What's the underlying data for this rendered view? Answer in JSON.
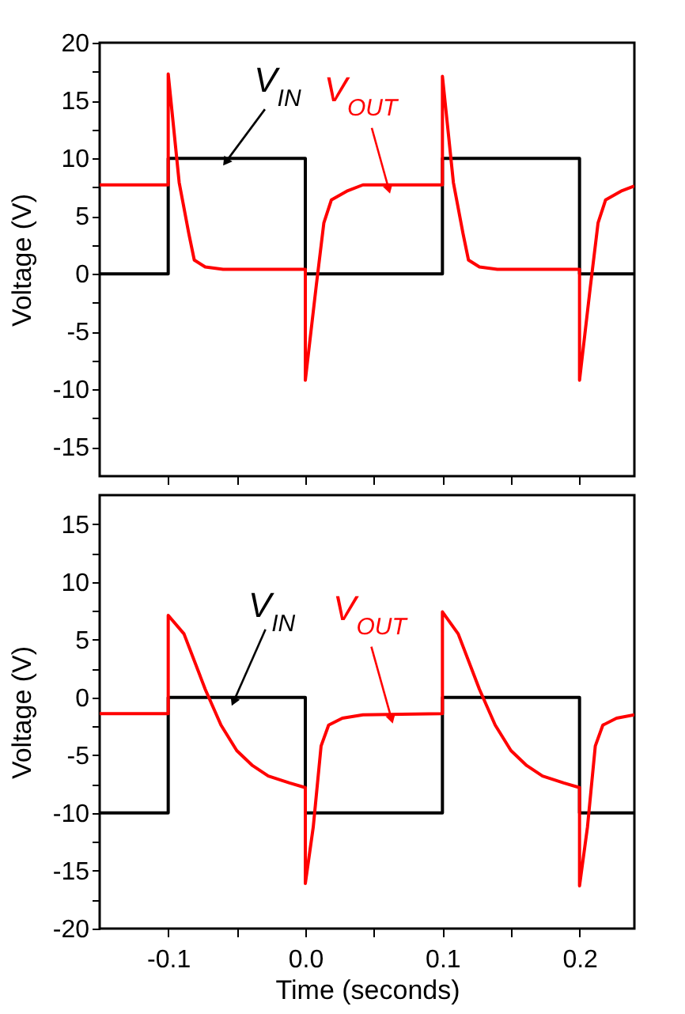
{
  "chart_data": [
    {
      "type": "line",
      "ylabel": "Voltage (V)",
      "xlim": [
        -0.15,
        0.24
      ],
      "ylim": [
        -17.5,
        20
      ],
      "tick_labels": "y",
      "xticks": [
        {
          "value": -0.1,
          "label": null
        },
        {
          "value": -0.05,
          "label": null
        },
        {
          "value": 0,
          "label": null
        },
        {
          "value": 0.05,
          "label": null
        },
        {
          "value": 0.1,
          "label": null
        },
        {
          "value": 0.15,
          "label": null
        },
        {
          "value": 0.2,
          "label": null
        }
      ],
      "yticks": [
        -15,
        {
          "value": -12.5,
          "label": null
        },
        -10,
        {
          "value": -7.5,
          "label": null
        },
        -5,
        {
          "value": -2.5,
          "label": null
        },
        0,
        {
          "value": 2.5,
          "label": null
        },
        5,
        {
          "value": 7.5,
          "label": null
        },
        10,
        {
          "value": 12.5,
          "label": null
        },
        15,
        {
          "value": 17.5,
          "label": null
        },
        20
      ],
      "series": [
        {
          "color": "#000000",
          "x": [
            -0.15,
            -0.1,
            -0.1,
            0,
            0,
            0.1,
            0.1,
            0.2,
            0.2,
            0.24
          ],
          "values": [
            0,
            0,
            10,
            10,
            0,
            0,
            10,
            10,
            0,
            0
          ]
        },
        {
          "color": "#ff0000",
          "x": [
            -0.15,
            -0.1,
            -0.1,
            -0.092,
            -0.085,
            -0.081,
            -0.073,
            -0.06,
            0,
            0,
            0.008,
            0.0135,
            0.019,
            0.031,
            0.042,
            0.1,
            0.1,
            0.108,
            0.115,
            0.119,
            0.127,
            0.14,
            0.2,
            0.2,
            0.208,
            0.2135,
            0.219,
            0.231,
            0.24
          ],
          "values": [
            7.7,
            7.7,
            17.3,
            7.9,
            3.5,
            1.2,
            0.6,
            0.4,
            0.4,
            -9.2,
            -1,
            4.4,
            6.4,
            7.2,
            7.7,
            7.7,
            17.1,
            7.9,
            3.5,
            1.2,
            0.6,
            0.4,
            0.4,
            -9.2,
            -1,
            4.4,
            6.4,
            7.2,
            7.6
          ]
        }
      ],
      "annotations": [
        {
          "text": "V$_{IN}$",
          "x": -0.056,
          "y": 10
        },
        {
          "text": "V$_{OUT}$",
          "x": 0.06,
          "y": 7.7
        }
      ]
    },
    {
      "type": "line",
      "xlabel": "Time (seconds)",
      "ylabel": "Voltage (V)",
      "xlim": [
        -0.15,
        0.24
      ],
      "ylim": [
        -20,
        17.5
      ],
      "xticks": [
        -0.1,
        {
          "value": -0.05,
          "label": null
        },
        {
          "value": 0,
          "label": "0.0"
        },
        {
          "value": 0.05,
          "label": null
        },
        0.1,
        {
          "value": 0.15,
          "label": null
        },
        0.2
      ],
      "yticks": [
        -20,
        {
          "value": -17.5,
          "label": null
        },
        -15,
        {
          "value": -12.5,
          "label": null
        },
        -10,
        {
          "value": -7.5,
          "label": null
        },
        -5,
        {
          "value": -2.5,
          "label": null
        },
        0,
        {
          "value": 2.5,
          "label": null
        },
        5,
        {
          "value": 7.5,
          "label": null
        },
        10,
        {
          "value": 12.5,
          "label": null
        },
        15
      ],
      "series": [
        {
          "color": "#000000",
          "x": [
            -0.15,
            -0.1,
            -0.1,
            0,
            0,
            0.1,
            0.1,
            0.2,
            0.2,
            0.24
          ],
          "values": [
            -10,
            -10,
            0,
            0,
            -10,
            -10,
            0,
            0,
            -10,
            -10
          ]
        },
        {
          "color": "#ff0000",
          "x": [
            -0.15,
            -0.1,
            -0.1,
            -0.0885,
            -0.073,
            -0.0615,
            -0.05,
            -0.0385,
            -0.027,
            -0.0115,
            0,
            0,
            0.0058,
            0.0115,
            0.017,
            0.027,
            0.042,
            0.1,
            0.1,
            0.1115,
            0.127,
            0.1385,
            0.15,
            0.1615,
            0.173,
            0.1885,
            0.2,
            0.2,
            0.2058,
            0.2115,
            0.217,
            0.227,
            0.24
          ],
          "values": [
            -1.4,
            -1.4,
            7.1,
            5.5,
            0.7,
            -2.4,
            -4.6,
            -5.9,
            -6.8,
            -7.4,
            -7.8,
            -16.1,
            -11.2,
            -4.2,
            -2.4,
            -1.8,
            -1.5,
            -1.4,
            7.4,
            5.5,
            0.7,
            -2.4,
            -4.6,
            -5.9,
            -6.8,
            -7.4,
            -7.8,
            -16.3,
            -11.2,
            -4.2,
            -2.4,
            -1.8,
            -1.5
          ]
        }
      ],
      "annotations": [
        {
          "text": "V$_{IN}$",
          "x": -0.051,
          "y": 0
        },
        {
          "text": "V$_{OUT}$",
          "x": 0.062,
          "y": -1.5
        }
      ]
    }
  ]
}
